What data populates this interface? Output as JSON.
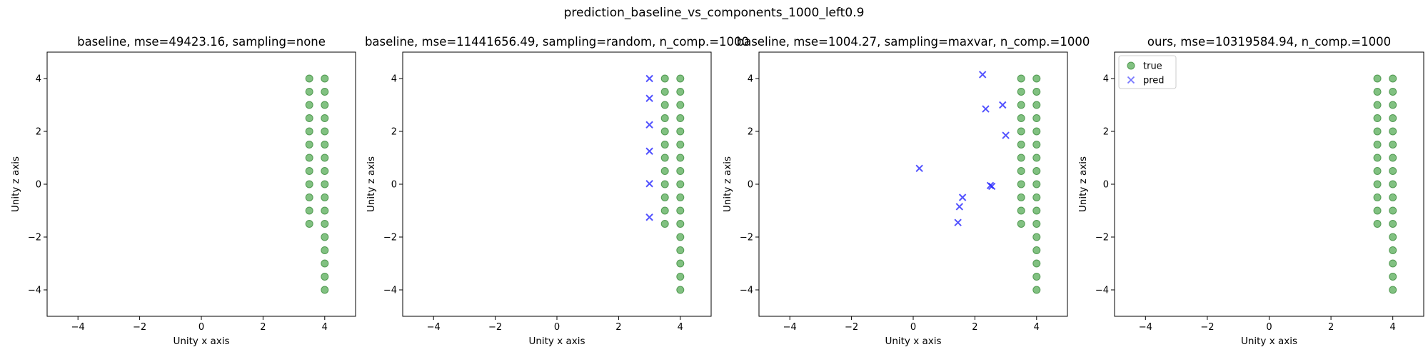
{
  "figure": {
    "suptitle": "prediction_baseline_vs_components_1000_left0.9"
  },
  "colors": {
    "true": "#4ca64c",
    "pred": "#1a1aff",
    "axes": "#000000"
  },
  "chart_data": [
    {
      "type": "scatter",
      "title": "baseline, mse=49423.16, sampling=none",
      "xlabel": "Unity x axis",
      "ylabel": "Unity z axis",
      "xlim": [
        -5,
        5
      ],
      "ylim": [
        -5,
        5
      ],
      "xticks": [
        "−4",
        "−2",
        "0",
        "2",
        "4"
      ],
      "yticks": [
        "−4",
        "−2",
        "0",
        "2",
        "4"
      ],
      "legend": null,
      "series": [
        {
          "name": "true",
          "marker": "circle",
          "points": [
            [
              3.5,
              4
            ],
            [
              3.5,
              3.5
            ],
            [
              3.5,
              3
            ],
            [
              3.5,
              2.5
            ],
            [
              3.5,
              2
            ],
            [
              3.5,
              1.5
            ],
            [
              3.5,
              1
            ],
            [
              3.5,
              0.5
            ],
            [
              3.5,
              0
            ],
            [
              3.5,
              -0.5
            ],
            [
              3.5,
              -1
            ],
            [
              3.5,
              -1.5
            ],
            [
              4,
              4
            ],
            [
              4,
              3.5
            ],
            [
              4,
              3
            ],
            [
              4,
              2.5
            ],
            [
              4,
              2
            ],
            [
              4,
              1.5
            ],
            [
              4,
              1
            ],
            [
              4,
              0.5
            ],
            [
              4,
              0
            ],
            [
              4,
              -0.5
            ],
            [
              4,
              -1
            ],
            [
              4,
              -1.5
            ],
            [
              4,
              -2
            ],
            [
              4,
              -2.5
            ],
            [
              4,
              -3
            ],
            [
              4,
              -3.5
            ],
            [
              4,
              -4
            ]
          ]
        },
        {
          "name": "pred",
          "marker": "x",
          "points": []
        }
      ]
    },
    {
      "type": "scatter",
      "title": "baseline, mse=11441656.49, sampling=random, n_comp.=1000",
      "xlabel": "Unity x axis",
      "ylabel": "Unity z axis",
      "xlim": [
        -5,
        5
      ],
      "ylim": [
        -5,
        5
      ],
      "xticks": [
        "−4",
        "−2",
        "0",
        "2",
        "4"
      ],
      "yticks": [
        "−4",
        "−2",
        "0",
        "2",
        "4"
      ],
      "legend": null,
      "series": [
        {
          "name": "true",
          "marker": "circle",
          "points": [
            [
              3.5,
              4
            ],
            [
              3.5,
              3.5
            ],
            [
              3.5,
              3
            ],
            [
              3.5,
              2.5
            ],
            [
              3.5,
              2
            ],
            [
              3.5,
              1.5
            ],
            [
              3.5,
              1
            ],
            [
              3.5,
              0.5
            ],
            [
              3.5,
              0
            ],
            [
              3.5,
              -0.5
            ],
            [
              3.5,
              -1
            ],
            [
              3.5,
              -1.5
            ],
            [
              4,
              4
            ],
            [
              4,
              3.5
            ],
            [
              4,
              3
            ],
            [
              4,
              2.5
            ],
            [
              4,
              2
            ],
            [
              4,
              1.5
            ],
            [
              4,
              1
            ],
            [
              4,
              0.5
            ],
            [
              4,
              0
            ],
            [
              4,
              -0.5
            ],
            [
              4,
              -1
            ],
            [
              4,
              -1.5
            ],
            [
              4,
              -2
            ],
            [
              4,
              -2.5
            ],
            [
              4,
              -3
            ],
            [
              4,
              -3.5
            ],
            [
              4,
              -4
            ]
          ]
        },
        {
          "name": "pred",
          "marker": "x",
          "points": [
            [
              3.0,
              4.0
            ],
            [
              3.0,
              3.25
            ],
            [
              3.0,
              2.25
            ],
            [
              3.0,
              1.25
            ],
            [
              3.0,
              0.02
            ],
            [
              3.0,
              -1.25
            ]
          ]
        }
      ]
    },
    {
      "type": "scatter",
      "title": "baseline, mse=1004.27, sampling=maxvar, n_comp.=1000",
      "xlabel": "Unity x axis",
      "ylabel": "Unity z axis",
      "xlim": [
        -5,
        5
      ],
      "ylim": [
        -5,
        5
      ],
      "xticks": [
        "−4",
        "−2",
        "0",
        "2",
        "4"
      ],
      "yticks": [
        "−4",
        "−2",
        "0",
        "2",
        "4"
      ],
      "legend": null,
      "series": [
        {
          "name": "true",
          "marker": "circle",
          "points": [
            [
              3.5,
              4
            ],
            [
              3.5,
              3.5
            ],
            [
              3.5,
              3
            ],
            [
              3.5,
              2.5
            ],
            [
              3.5,
              2
            ],
            [
              3.5,
              1.5
            ],
            [
              3.5,
              1
            ],
            [
              3.5,
              0.5
            ],
            [
              3.5,
              0
            ],
            [
              3.5,
              -0.5
            ],
            [
              3.5,
              -1
            ],
            [
              3.5,
              -1.5
            ],
            [
              4,
              4
            ],
            [
              4,
              3.5
            ],
            [
              4,
              3
            ],
            [
              4,
              2.5
            ],
            [
              4,
              2
            ],
            [
              4,
              1.5
            ],
            [
              4,
              1
            ],
            [
              4,
              0.5
            ],
            [
              4,
              0
            ],
            [
              4,
              -0.5
            ],
            [
              4,
              -1
            ],
            [
              4,
              -1.5
            ],
            [
              4,
              -2
            ],
            [
              4,
              -2.5
            ],
            [
              4,
              -3
            ],
            [
              4,
              -3.5
            ],
            [
              4,
              -4
            ]
          ]
        },
        {
          "name": "pred",
          "marker": "x",
          "points": [
            [
              2.25,
              4.15
            ],
            [
              2.35,
              2.85
            ],
            [
              2.9,
              3.0
            ],
            [
              3.0,
              1.85
            ],
            [
              0.2,
              0.6
            ],
            [
              2.5,
              -0.05
            ],
            [
              2.55,
              -0.08
            ],
            [
              1.6,
              -0.5
            ],
            [
              1.5,
              -0.85
            ],
            [
              1.45,
              -1.45
            ]
          ]
        }
      ]
    },
    {
      "type": "scatter",
      "title": "ours, mse=10319584.94, n_comp.=1000",
      "xlabel": "Unity x axis",
      "ylabel": "Unity z axis",
      "xlim": [
        -5,
        5
      ],
      "ylim": [
        -5,
        5
      ],
      "xticks": [
        "−4",
        "−2",
        "0",
        "2",
        "4"
      ],
      "yticks": [
        "−4",
        "−2",
        "0",
        "2",
        "4"
      ],
      "legend": {
        "location": "top-left",
        "entries": [
          "true",
          "pred"
        ]
      },
      "series": [
        {
          "name": "true",
          "marker": "circle",
          "points": [
            [
              3.5,
              4
            ],
            [
              3.5,
              3.5
            ],
            [
              3.5,
              3
            ],
            [
              3.5,
              2.5
            ],
            [
              3.5,
              2
            ],
            [
              3.5,
              1.5
            ],
            [
              3.5,
              1
            ],
            [
              3.5,
              0.5
            ],
            [
              3.5,
              0
            ],
            [
              3.5,
              -0.5
            ],
            [
              3.5,
              -1
            ],
            [
              3.5,
              -1.5
            ],
            [
              4,
              4
            ],
            [
              4,
              3.5
            ],
            [
              4,
              3
            ],
            [
              4,
              2.5
            ],
            [
              4,
              2
            ],
            [
              4,
              1.5
            ],
            [
              4,
              1
            ],
            [
              4,
              0.5
            ],
            [
              4,
              0
            ],
            [
              4,
              -0.5
            ],
            [
              4,
              -1
            ],
            [
              4,
              -1.5
            ],
            [
              4,
              -2
            ],
            [
              4,
              -2.5
            ],
            [
              4,
              -3
            ],
            [
              4,
              -3.5
            ],
            [
              4,
              -4
            ]
          ]
        },
        {
          "name": "pred",
          "marker": "x",
          "points": []
        }
      ]
    }
  ]
}
